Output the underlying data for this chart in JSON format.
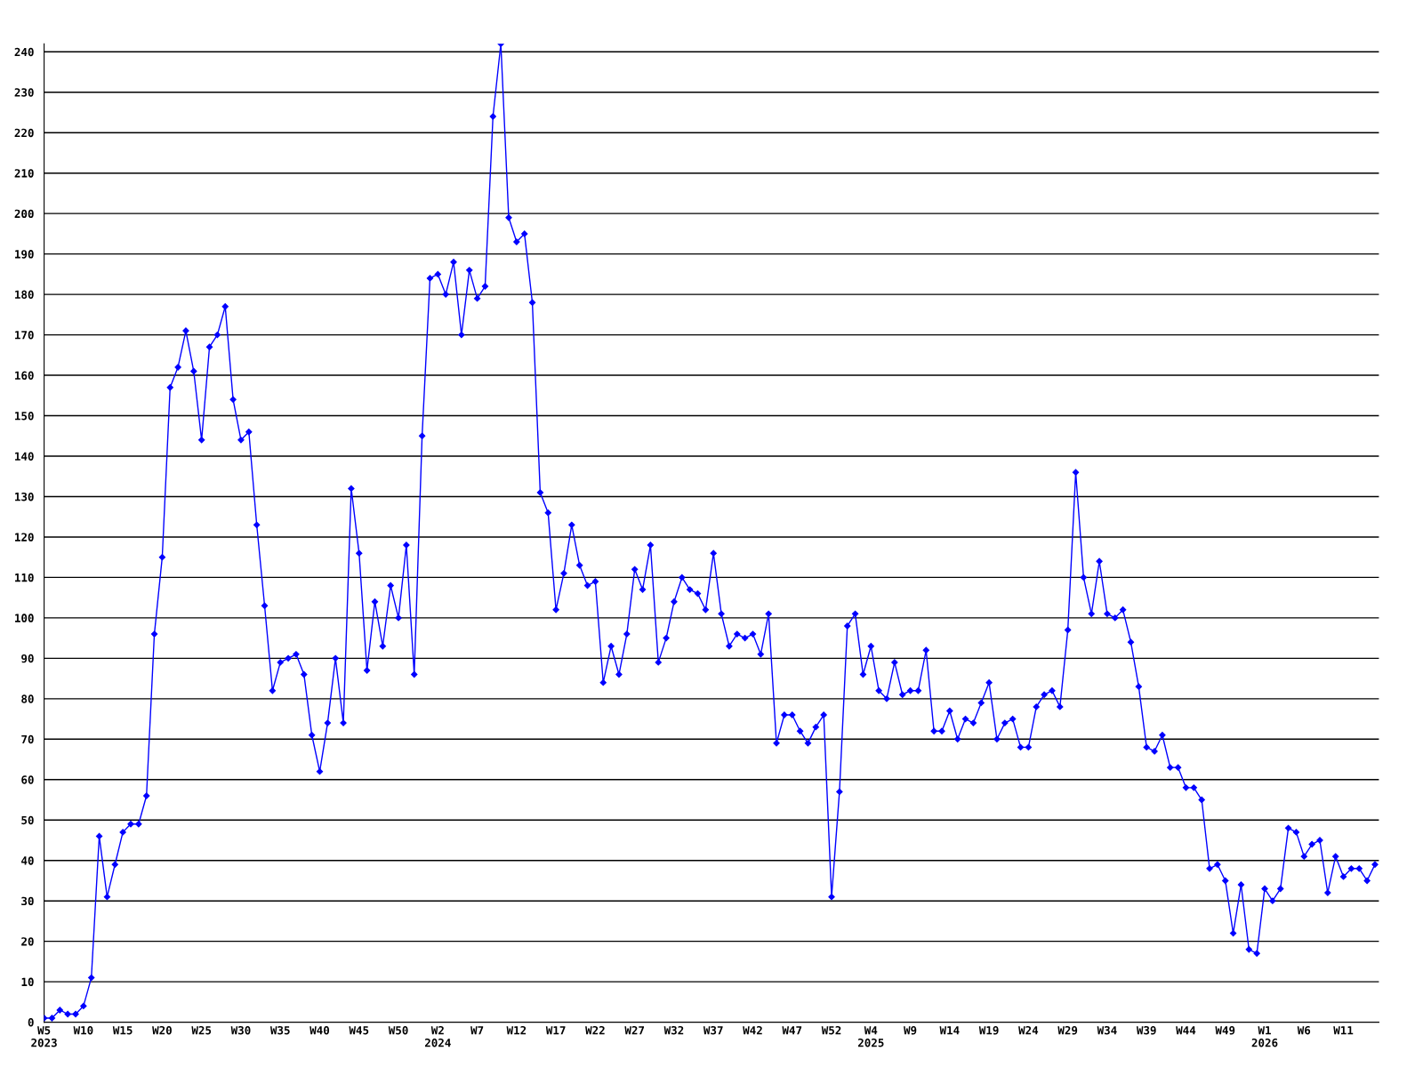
{
  "chart_data": {
    "type": "line",
    "color": "#0000ff",
    "marker": "diamond",
    "grid": "y",
    "ylim": [
      0,
      242
    ],
    "yticks": [
      0,
      10,
      20,
      30,
      40,
      50,
      60,
      70,
      80,
      90,
      100,
      110,
      120,
      130,
      140,
      150,
      160,
      170,
      180,
      190,
      200,
      210,
      220,
      230,
      240
    ],
    "categories": [
      "W5\n2023",
      null,
      null,
      null,
      null,
      "W10",
      null,
      null,
      null,
      null,
      "W15",
      null,
      null,
      null,
      null,
      "W20",
      null,
      null,
      null,
      null,
      "W25",
      null,
      null,
      null,
      null,
      "W30",
      null,
      null,
      null,
      null,
      "W35",
      null,
      null,
      null,
      null,
      "W40",
      null,
      null,
      null,
      null,
      "W45",
      null,
      null,
      null,
      null,
      "W50",
      null,
      null,
      null,
      null,
      "W2\n2024",
      null,
      null,
      null,
      null,
      "W7",
      null,
      null,
      null,
      null,
      "W12",
      null,
      null,
      null,
      null,
      "W17",
      null,
      null,
      null,
      null,
      "W22",
      null,
      null,
      null,
      null,
      "W27",
      null,
      null,
      null,
      null,
      "W32",
      null,
      null,
      null,
      null,
      "W37",
      null,
      null,
      null,
      null,
      "W42",
      null,
      null,
      null,
      null,
      "W47",
      null,
      null,
      null,
      null,
      "W52",
      null,
      null,
      null,
      null,
      "W4\n2025",
      null,
      null,
      null,
      null,
      "W9",
      null,
      null,
      null,
      null,
      "W14",
      null,
      null,
      null,
      null,
      "W19",
      null,
      null,
      null,
      null,
      "W24",
      null,
      null,
      null,
      null,
      "W29",
      null,
      null,
      null,
      null,
      "W34",
      null,
      null,
      null,
      null,
      "W39",
      null,
      null,
      null,
      null,
      "W44",
      null,
      null,
      null,
      null,
      "W49",
      null,
      null,
      null,
      null,
      "W1\n2026",
      null,
      null,
      null,
      null,
      "W6",
      null,
      null,
      null,
      null,
      "W11",
      null,
      null,
      null,
      null
    ],
    "values": [
      1,
      1,
      3,
      2,
      2,
      4,
      11,
      46,
      31,
      39,
      47,
      49,
      49,
      56,
      96,
      115,
      157,
      162,
      171,
      161,
      144,
      167,
      170,
      177,
      154,
      144,
      146,
      123,
      103,
      82,
      89,
      90,
      91,
      86,
      71,
      62,
      74,
      90,
      74,
      132,
      116,
      87,
      104,
      93,
      108,
      100,
      118,
      86,
      145,
      184,
      185,
      180,
      188,
      170,
      186,
      179,
      182,
      224,
      242,
      199,
      193,
      195,
      178,
      131,
      126,
      102,
      111,
      123,
      113,
      108,
      109,
      84,
      93,
      86,
      96,
      112,
      107,
      118,
      89,
      95,
      104,
      110,
      107,
      106,
      102,
      116,
      101,
      93,
      96,
      95,
      96,
      91,
      101,
      69,
      76,
      76,
      72,
      69,
      73,
      76,
      31,
      57,
      98,
      101,
      86,
      93,
      82,
      80,
      89,
      81,
      82,
      82,
      92,
      72,
      72,
      77,
      70,
      75,
      74,
      79,
      84,
      70,
      74,
      75,
      68,
      68,
      78,
      81,
      82,
      78,
      97,
      136,
      110,
      101,
      114,
      101,
      100,
      102,
      94,
      83,
      68,
      67,
      71,
      63,
      63,
      58,
      58,
      55,
      38,
      39,
      35,
      22,
      34,
      18,
      17,
      33,
      30,
      33,
      48,
      47,
      41,
      44,
      45,
      32,
      41,
      36,
      38,
      38,
      35,
      39
    ]
  }
}
